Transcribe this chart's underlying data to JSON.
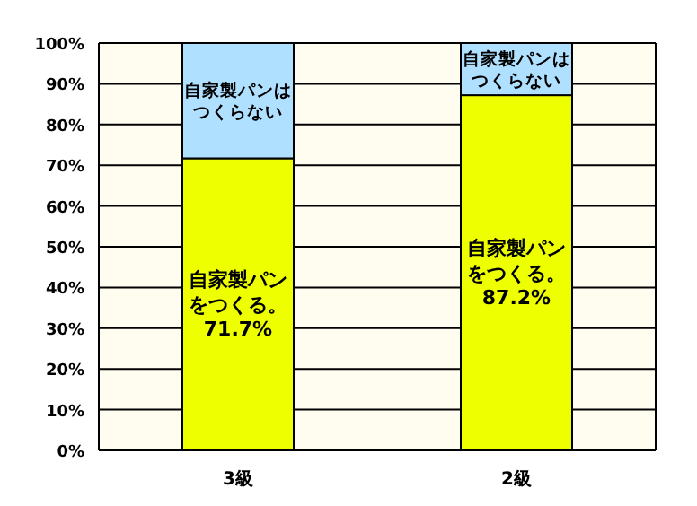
{
  "chart_data": {
    "type": "bar",
    "stacked": true,
    "categories": [
      "3級",
      "2級"
    ],
    "series": [
      {
        "name": "自家製パンをつくる。",
        "color": "#eeff00",
        "values": [
          71.7,
          87.2
        ],
        "value_labels": [
          "71.7%",
          "87.2%"
        ]
      },
      {
        "name": "自家製パンはつくらない",
        "color": "#b0e0ff",
        "values": [
          28.3,
          12.8
        ]
      }
    ],
    "ylim": [
      0,
      100
    ],
    "yticks": [
      {
        "value": 0,
        "label": "0%"
      },
      {
        "value": 10,
        "label": "10%"
      },
      {
        "value": 20,
        "label": "20%"
      },
      {
        "value": 30,
        "label": "30%"
      },
      {
        "value": 40,
        "label": "40%"
      },
      {
        "value": 50,
        "label": "50%"
      },
      {
        "value": 60,
        "label": "60%"
      },
      {
        "value": 70,
        "label": "70%"
      },
      {
        "value": 80,
        "label": "80%"
      },
      {
        "value": 90,
        "label": "90%"
      },
      {
        "value": 100,
        "label": "100%"
      }
    ],
    "grid": "y"
  }
}
